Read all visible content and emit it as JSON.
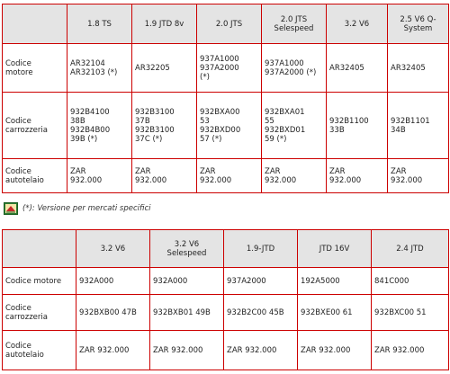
{
  "table1": {
    "columns": [
      "1.8 TS",
      "1.9 JTD 8v",
      "2.0 JTS",
      "2.0 JTS\nSelespeed",
      "3.2 V6",
      "2.5 V6 Q-\nSystem"
    ],
    "rows": [
      {
        "label": "Codice\nmotore",
        "cells": [
          "AR32104\nAR32103 (*)",
          "AR32205",
          "937A1000\n937A2000\n(*)",
          "937A1000\n937A2000 (*)",
          "AR32405",
          "AR32405"
        ]
      },
      {
        "label": "Codice\ncarrozzeria",
        "cells": [
          "932B4100\n38B\n932B4B00\n39B (*)",
          "932B3100\n37B\n932B3100\n37C (*)",
          "932BXA00\n53\n932BXD00\n57 (*)",
          "932BXA01\n55\n932BXD01\n59 (*)",
          "932B1100\n33B",
          "932B1101\n34B"
        ]
      },
      {
        "label": "Codice\nautotelaio",
        "cells": [
          "ZAR\n932.000",
          "ZAR\n932.000",
          "ZAR\n932.000",
          "ZAR\n932.000",
          "ZAR\n932.000",
          "ZAR\n932.000"
        ]
      }
    ]
  },
  "note": {
    "icon": "document-note-icon",
    "text": "(*): Versione per mercati specifici"
  },
  "table2": {
    "columns": [
      "3.2 V6",
      "3.2 V6\nSelespeed",
      "1.9-JTD",
      "JTD 16V",
      "2.4 JTD"
    ],
    "rows": [
      {
        "label": "Codice motore",
        "cells": [
          "932A000",
          "932A000",
          "937A2000",
          "192A5000",
          "841C000"
        ]
      },
      {
        "label": "Codice\ncarrozzeria",
        "cells": [
          "932BXB00 47B",
          "932BXB01 49B",
          "932B2C00 45B",
          "932BXE00 61",
          "932BXC00 51"
        ]
      },
      {
        "label": "Codice\nautotelaio",
        "cells": [
          "ZAR 932.000",
          "ZAR 932.000",
          "ZAR 932.000",
          "ZAR 932.000",
          "ZAR 932.000"
        ]
      }
    ]
  },
  "colors": {
    "border": "#cc0000",
    "header_bg": "#e4e4e4"
  }
}
